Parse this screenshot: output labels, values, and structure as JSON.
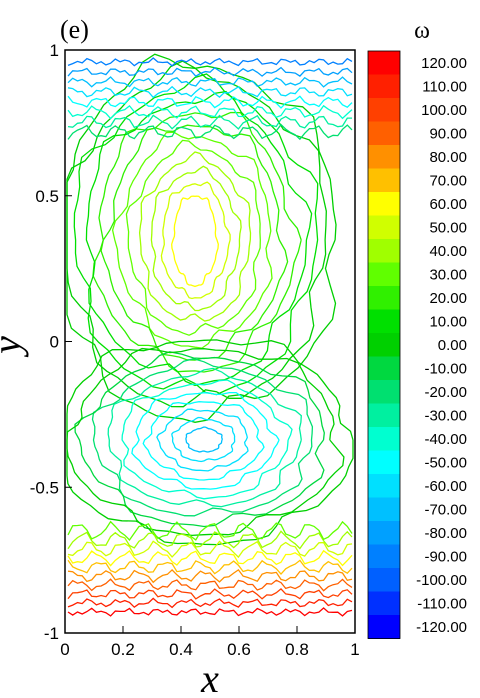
{
  "chart_data": {
    "type": "contour",
    "panel_label": "(e)",
    "x_label": "x",
    "y_label": "y",
    "colorbar_title": "ω",
    "xlim": [
      0,
      1
    ],
    "ylim": [
      -1,
      1
    ],
    "xticks": [
      0,
      0.2,
      0.4,
      0.6,
      0.8,
      1
    ],
    "yticks": [
      -1,
      -0.5,
      0,
      0.5,
      1
    ],
    "levels": [
      {
        "value": 120,
        "label": "120.00"
      },
      {
        "value": 110,
        "label": "110.00"
      },
      {
        "value": 100,
        "label": "100.00"
      },
      {
        "value": 90,
        "label": "90.00"
      },
      {
        "value": 80,
        "label": "80.00"
      },
      {
        "value": 70,
        "label": "70.00"
      },
      {
        "value": 60,
        "label": "60.00"
      },
      {
        "value": 50,
        "label": "50.00"
      },
      {
        "value": 40,
        "label": "40.00"
      },
      {
        "value": 30,
        "label": "30.00"
      },
      {
        "value": 20,
        "label": "20.00"
      },
      {
        "value": 10,
        "label": "10.00"
      },
      {
        "value": 0,
        "label": "0.00"
      },
      {
        "value": -10,
        "label": "-10.00"
      },
      {
        "value": -20,
        "label": "-20.00"
      },
      {
        "value": -30,
        "label": "-30.00"
      },
      {
        "value": -40,
        "label": "-40.00"
      },
      {
        "value": -50,
        "label": "-50.00"
      },
      {
        "value": -60,
        "label": "-60.00"
      },
      {
        "value": -70,
        "label": "-70.00"
      },
      {
        "value": -80,
        "label": "-80.00"
      },
      {
        "value": -90,
        "label": "-90.00"
      },
      {
        "value": -100,
        "label": "-100.00"
      },
      {
        "value": -110,
        "label": "-110.00"
      },
      {
        "value": -120,
        "label": "-120.00"
      }
    ],
    "colors": [
      "#ff0000",
      "#ff2000",
      "#ff4000",
      "#ff6000",
      "#ff9000",
      "#ffc000",
      "#ffff00",
      "#d0ff00",
      "#a0ff00",
      "#60ff00",
      "#30f000",
      "#00e000",
      "#00d000",
      "#00d840",
      "#00e070",
      "#00f0a0",
      "#00ffd0",
      "#00ffff",
      "#00e0ff",
      "#00c0ff",
      "#00a0ff",
      "#0080ff",
      "#0060ff",
      "#0030ff",
      "#0000ff"
    ]
  }
}
